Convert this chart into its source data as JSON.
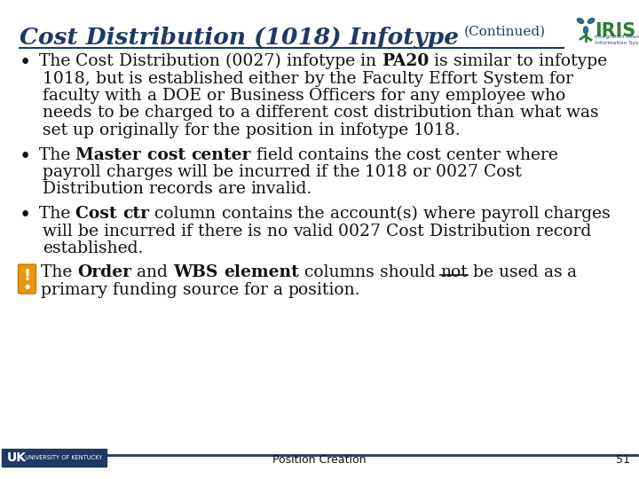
{
  "bg_color": "#ffffff",
  "title_main": "Cost Distribution (1018) Infotype",
  "title_cont": "(Continued)",
  "title_color": "#1F3864",
  "body_color": "#111111",
  "footer_bar_color": "#1F3864",
  "footer_text": "Position Creation",
  "footer_number": "51",
  "uk_box_color": "#1F3864",
  "iris_text_color": "#2E7D32",
  "iris_logo_color": "#1a5276",
  "bullet1": [
    [
      "normal",
      "The Cost Distribution (0027) infotype in "
    ],
    [
      "bold",
      "PA20"
    ],
    [
      "normal",
      " is similar to infotype 1018, but is established either by the Faculty Effort System for faculty with a DOE or Business Officers for any employee who needs to be charged to a different cost distribution than what was set up originally for the position in infotype 1018."
    ]
  ],
  "bullet2": [
    [
      "normal",
      "The "
    ],
    [
      "bold",
      "Master cost center"
    ],
    [
      "normal",
      " field contains the cost center where payroll charges will be incurred if the 1018 or 0027 Cost Distribution records are invalid."
    ]
  ],
  "bullet3": [
    [
      "normal",
      "The "
    ],
    [
      "bold",
      "Cost ctr"
    ],
    [
      "normal",
      " column contains the account(s) where payroll charges will be incurred if there is no valid 0027 Cost Distribution record established."
    ]
  ],
  "note": [
    [
      "normal",
      "The "
    ],
    [
      "bold",
      "Order"
    ],
    [
      "normal",
      " and "
    ],
    [
      "bold",
      "WBS element"
    ],
    [
      "normal",
      " columns should "
    ],
    [
      "underline",
      "not"
    ],
    [
      "normal",
      " be used as a primary funding source for a position."
    ]
  ]
}
